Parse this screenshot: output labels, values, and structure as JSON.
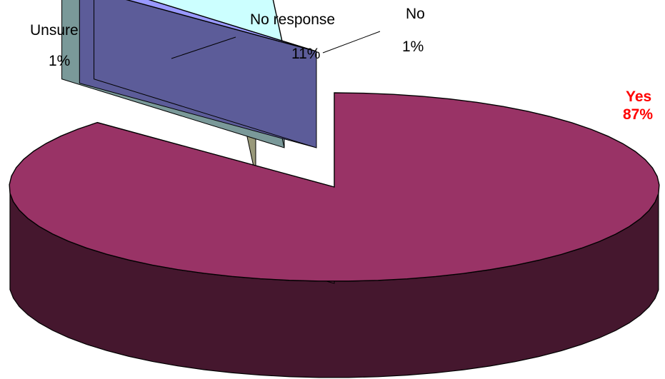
{
  "chart_data": {
    "type": "pie",
    "style": "3d-exploded",
    "categories": [
      "Yes",
      "No",
      "No response",
      "Unsure"
    ],
    "values": [
      87,
      1,
      11,
      1
    ],
    "value_labels": [
      "87%",
      "1%",
      "11%",
      "1%"
    ],
    "colors": {
      "Yes": "#993366",
      "No": "#9999FF",
      "No response": "#CCFFFF",
      "Unsure": "#FFFFCC",
      "highlight_label": "#FF0000"
    },
    "title": "",
    "legend": "none"
  }
}
